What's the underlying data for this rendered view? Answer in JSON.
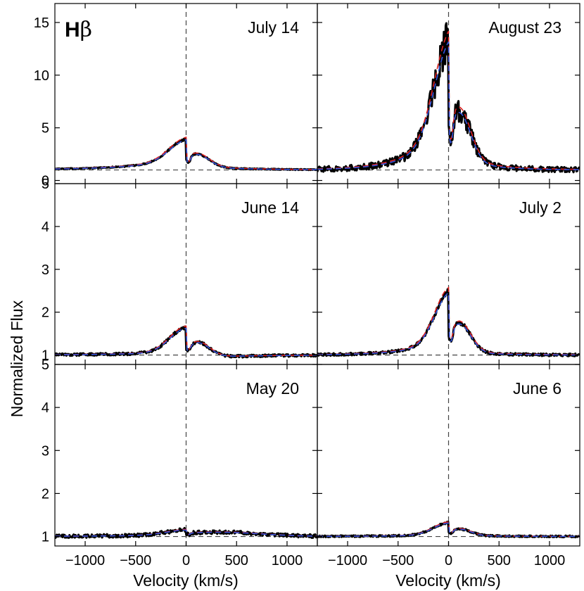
{
  "figure": {
    "line_label": "Hβ",
    "xlabel": "Velocity  (km/s)",
    "ylabel": "Normalized Flux"
  },
  "colors": {
    "observed": "#000000",
    "model_red": "#dd2222",
    "model_blue": "#3355dd",
    "guide": "#444444"
  },
  "chart_data": [
    {
      "type": "line",
      "label": "July 14",
      "row": 0,
      "col": 0,
      "xlim": [
        -1300,
        1300
      ],
      "ylim": [
        -0.3,
        16.8
      ],
      "yticks": [
        0,
        5,
        10,
        15
      ],
      "xticks": [],
      "continuum": 1,
      "profile": {
        "peak": 4.4,
        "sigma_blue": 170,
        "wing_blue": 3.4,
        "wing_blue_w": 520,
        "red_peak": 3.0,
        "red_center": 110,
        "red_sigma": 120,
        "red_wing": 2.0,
        "red_wing_w": 480,
        "noise": 0.04
      }
    },
    {
      "type": "line",
      "label": "August 23",
      "row": 0,
      "col": 1,
      "xlim": [
        -1300,
        1300
      ],
      "ylim": [
        -0.3,
        16.8
      ],
      "yticks": [],
      "xticks": [],
      "continuum": 1,
      "profile": {
        "peak": 14.8,
        "sigma_blue": 150,
        "wing_blue": 12.0,
        "wing_blue_w": 300,
        "red_peak": 8.5,
        "red_center": 110,
        "red_sigma": 110,
        "red_wing": 5.0,
        "red_wing_w": 300,
        "noise": 0.25
      }
    },
    {
      "type": "line",
      "label": "June 14",
      "row": 1,
      "col": 0,
      "xlim": [
        -1300,
        1300
      ],
      "ylim": [
        0.78,
        5.0
      ],
      "yticks": [
        1,
        2,
        3,
        4,
        5
      ],
      "xticks": [],
      "continuum": 1,
      "profile": {
        "peak": 2.0,
        "sigma_blue": 160,
        "wing_blue": 1.2,
        "wing_blue_w": 500,
        "red_peak": 1.6,
        "red_center": 110,
        "red_sigma": 120,
        "red_wing": 0.8,
        "red_wing_w": 500,
        "noise": 0.03
      }
    },
    {
      "type": "line",
      "label": "July 2",
      "row": 1,
      "col": 1,
      "xlim": [
        -1300,
        1300
      ],
      "ylim": [
        0.78,
        5.0
      ],
      "yticks": [],
      "xticks": [],
      "continuum": 1,
      "profile": {
        "peak": 2.9,
        "sigma_blue": 140,
        "wing_blue": 2.0,
        "wing_blue_w": 320,
        "red_peak": 2.1,
        "red_center": 110,
        "red_sigma": 110,
        "red_wing": 1.3,
        "red_wing_w": 320,
        "noise": 0.03
      }
    },
    {
      "type": "line",
      "label": "May 20",
      "row": 2,
      "col": 0,
      "xlim": [
        -1300,
        1300
      ],
      "ylim": [
        0.78,
        5.0
      ],
      "yticks": [
        1,
        2,
        3,
        4,
        5
      ],
      "xticks": [
        -1000,
        -500,
        0,
        500,
        1000
      ],
      "continuum": 1,
      "profile": {
        "peak": 1.2,
        "sigma_blue": 200,
        "wing_blue": 1.1,
        "wing_blue_w": 700,
        "red_peak": 1.15,
        "red_center": 350,
        "red_sigma": 400,
        "red_wing": 1.05,
        "red_wing_w": 700,
        "noise": 0.04
      }
    },
    {
      "type": "line",
      "label": "June 6",
      "row": 2,
      "col": 1,
      "xlim": [
        -1300,
        1300
      ],
      "ylim": [
        0.78,
        5.0
      ],
      "yticks": [],
      "xticks": [
        -1000,
        -500,
        0,
        500,
        1000
      ],
      "continuum": 1,
      "profile": {
        "peak": 1.5,
        "sigma_blue": 150,
        "wing_blue": 1.1,
        "wing_blue_w": 500,
        "red_peak": 1.25,
        "red_center": 110,
        "red_sigma": 110,
        "red_wing": 1.08,
        "red_wing_w": 450,
        "noise": 0.02
      }
    }
  ]
}
